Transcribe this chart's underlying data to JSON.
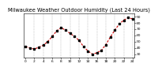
{
  "title": "Milwaukee Weather Outdoor Humidity (Last 24 Hours)",
  "x_values": [
    0,
    1,
    2,
    3,
    4,
    5,
    6,
    7,
    8,
    9,
    10,
    11,
    12,
    13,
    14,
    15,
    16,
    17,
    18,
    19,
    20,
    21,
    22,
    23,
    24
  ],
  "y_values": [
    42,
    40,
    38,
    41,
    44,
    50,
    58,
    67,
    72,
    68,
    63,
    58,
    52,
    42,
    35,
    30,
    32,
    36,
    45,
    57,
    68,
    78,
    84,
    88,
    86
  ],
  "y_tick_positions": [
    30,
    40,
    50,
    60,
    70,
    80,
    90
  ],
  "y_tick_labels": [
    "30",
    "40",
    "50",
    "60",
    "70",
    "80",
    "90"
  ],
  "ylim": [
    25,
    95
  ],
  "xlim": [
    -0.3,
    24.3
  ],
  "grid_x_positions": [
    2,
    4,
    6,
    8,
    10,
    12,
    14,
    16,
    18,
    20,
    22,
    24
  ],
  "line_color": "#cc0000",
  "marker_color": "#000000",
  "background_color": "#ffffff",
  "plot_bg_color": "#ffffff",
  "title_fontsize": 4.8,
  "tick_fontsize": 3.2,
  "line_width": 0.8,
  "marker_size": 1.8,
  "grid_color": "#999999"
}
